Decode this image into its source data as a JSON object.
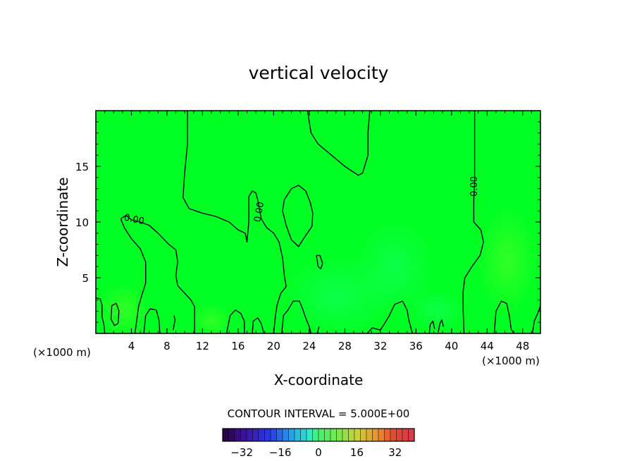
{
  "chart_data": {
    "type": "contour",
    "title": "vertical velocity",
    "xlabel": "X-coordinate",
    "ylabel": "Z-coordinate",
    "x_unit_left": "(×1000 m)",
    "x_unit_right": "(×1000 m)",
    "xlim": [
      0,
      50
    ],
    "ylim": [
      0,
      20
    ],
    "x_ticks": [
      4,
      8,
      12,
      16,
      20,
      24,
      28,
      32,
      36,
      40,
      44,
      48
    ],
    "y_ticks": [
      5,
      10,
      15
    ],
    "contour_label": "0.00",
    "contour_interval_text": "CONTOUR INTERVAL = 5.000E+00",
    "colorbar": {
      "min": -40,
      "max": 40,
      "tick_values": [
        -32,
        -16,
        0,
        16,
        32
      ],
      "tick_labels": [
        "−32",
        "−16",
        "0",
        "16",
        "32"
      ]
    },
    "fill_color": "#00ff22",
    "zero_contours": [
      {
        "name": "central",
        "points": [
          [
            10.3,
            20
          ],
          [
            10.3,
            17
          ],
          [
            10,
            14.5
          ],
          [
            9.8,
            12.2
          ],
          [
            10.5,
            11.2
          ],
          [
            12,
            10.8
          ],
          [
            13.5,
            10.5
          ],
          [
            15,
            10
          ],
          [
            16,
            9.3
          ],
          [
            16.8,
            9
          ],
          [
            17,
            8.2
          ],
          [
            17.2,
            10
          ],
          [
            17.2,
            12.3
          ],
          [
            17.6,
            12.8
          ],
          [
            18,
            12.6
          ],
          [
            18.2,
            12
          ],
          [
            18.6,
            10.3
          ],
          [
            19.2,
            9.5
          ],
          [
            20,
            9
          ],
          [
            20.6,
            8.2
          ],
          [
            21,
            6.8
          ],
          [
            21.2,
            5.2
          ],
          [
            21.4,
            4.2
          ],
          [
            20.8,
            3.6
          ],
          [
            20.4,
            2.6
          ],
          [
            20.2,
            1.6
          ],
          [
            20,
            0
          ]
        ]
      },
      {
        "name": "left",
        "points": [
          [
            2.8,
            10.3
          ],
          [
            3.4,
            10.6
          ],
          [
            4,
            10.2
          ],
          [
            5,
            10
          ],
          [
            6,
            9.7
          ],
          [
            7,
            9
          ],
          [
            8.2,
            8
          ],
          [
            9,
            7.5
          ],
          [
            9.2,
            6.4
          ],
          [
            9,
            5.2
          ],
          [
            9.2,
            4.3
          ],
          [
            10,
            3.6
          ],
          [
            10.7,
            3
          ],
          [
            11.1,
            2.4
          ],
          [
            11.1,
            0
          ]
        ]
      },
      {
        "name": "left-inner",
        "points": [
          [
            2.8,
            10.3
          ],
          [
            3.2,
            9.5
          ],
          [
            4,
            8.5
          ],
          [
            5,
            7.6
          ],
          [
            5.6,
            6.4
          ],
          [
            5.6,
            4.5
          ],
          [
            5.2,
            3.5
          ],
          [
            4.8,
            2.4
          ],
          [
            4.6,
            1.2
          ],
          [
            4.4,
            0
          ]
        ]
      },
      {
        "name": "left-edge",
        "points": [
          [
            0,
            3.2
          ],
          [
            0.5,
            3.1
          ],
          [
            0.7,
            2.5
          ],
          [
            0.7,
            1.5
          ],
          [
            0.9,
            0.8
          ],
          [
            1,
            0
          ]
        ]
      },
      {
        "name": "small-blob-left",
        "points": [
          [
            1.8,
            2.5
          ],
          [
            2.3,
            2.7
          ],
          [
            2.6,
            2
          ],
          [
            2.5,
            0.9
          ],
          [
            2.1,
            0.7
          ],
          [
            1.7,
            1.3
          ],
          [
            1.8,
            2.5
          ]
        ]
      },
      {
        "name": "top-right-tongue",
        "points": [
          [
            23.8,
            20
          ],
          [
            24.2,
            18
          ],
          [
            25,
            17
          ],
          [
            26.5,
            16
          ],
          [
            28,
            15
          ],
          [
            29.5,
            14.2
          ],
          [
            30,
            14.4
          ],
          [
            30.6,
            16
          ],
          [
            30.6,
            18
          ],
          [
            30.8,
            20
          ]
        ]
      },
      {
        "name": "closed-blob",
        "points": [
          [
            21.2,
            12
          ],
          [
            22,
            13
          ],
          [
            22.8,
            13.3
          ],
          [
            23.6,
            12.8
          ],
          [
            24.1,
            11.8
          ],
          [
            24.4,
            10.8
          ],
          [
            24.3,
            9.6
          ],
          [
            23.6,
            8.8
          ],
          [
            22.8,
            7.8
          ],
          [
            22,
            8.4
          ],
          [
            21.4,
            9.7
          ],
          [
            21,
            11
          ],
          [
            21.2,
            12
          ]
        ]
      },
      {
        "name": "small-blob",
        "points": [
          [
            24.8,
            7
          ],
          [
            25.2,
            7
          ],
          [
            25.5,
            6.3
          ],
          [
            25.3,
            5.8
          ],
          [
            25,
            6
          ],
          [
            24.8,
            7
          ]
        ]
      },
      {
        "name": "right",
        "points": [
          [
            42.6,
            20
          ],
          [
            42.6,
            16
          ],
          [
            42.6,
            13.4
          ],
          [
            42.5,
            12
          ],
          [
            42.5,
            10
          ],
          [
            43.3,
            9.3
          ],
          [
            43.6,
            8.2
          ],
          [
            43.2,
            7
          ],
          [
            42.3,
            6
          ],
          [
            41.5,
            5
          ],
          [
            41.3,
            3.8
          ],
          [
            41.3,
            2.2
          ],
          [
            41.4,
            0
          ]
        ]
      },
      {
        "name": "b1",
        "points": [
          [
            5.4,
            0
          ],
          [
            5.6,
            1.6
          ],
          [
            6.1,
            2.2
          ],
          [
            6.8,
            2.1
          ],
          [
            7.1,
            1.2
          ],
          [
            7.2,
            0
          ]
        ]
      },
      {
        "name": "b2",
        "points": [
          [
            8.7,
            0.3
          ],
          [
            8.9,
            1.2
          ],
          [
            8.8,
            1.6
          ]
        ]
      },
      {
        "name": "b3",
        "points": [
          [
            14.7,
            0
          ],
          [
            15.1,
            1.6
          ],
          [
            15.7,
            2.1
          ],
          [
            16.3,
            1.8
          ],
          [
            16.7,
            1.1
          ],
          [
            16.7,
            0
          ]
        ]
      },
      {
        "name": "b4",
        "points": [
          [
            17.6,
            0
          ],
          [
            17.7,
            1.1
          ],
          [
            18.2,
            1.4
          ],
          [
            18.6,
            0.9
          ],
          [
            18.9,
            0
          ]
        ]
      },
      {
        "name": "b5",
        "points": [
          [
            20.9,
            0
          ],
          [
            21.1,
            1.6
          ],
          [
            21.6,
            2.1
          ],
          [
            22.2,
            2.9
          ],
          [
            22.9,
            2.9
          ],
          [
            23.3,
            2.1
          ],
          [
            23.6,
            1.4
          ],
          [
            24,
            0.6
          ],
          [
            24.2,
            0
          ]
        ]
      },
      {
        "name": "b6",
        "points": [
          [
            24.9,
            0
          ],
          [
            25.1,
            0.6
          ]
        ]
      },
      {
        "name": "b7",
        "points": [
          [
            30.5,
            0
          ],
          [
            31.1,
            0.5
          ],
          [
            32,
            0.3
          ],
          [
            32.4,
            0.8
          ],
          [
            33,
            1.6
          ],
          [
            33.6,
            2.6
          ],
          [
            34.5,
            2.9
          ],
          [
            35,
            2.1
          ],
          [
            35.2,
            1.2
          ],
          [
            35.6,
            0
          ]
        ]
      },
      {
        "name": "b8",
        "points": [
          [
            37.5,
            0
          ],
          [
            37.6,
            0.8
          ],
          [
            37.9,
            1.1
          ],
          [
            38.1,
            0.4
          ]
        ]
      },
      {
        "name": "b9",
        "points": [
          [
            38.5,
            0.1
          ],
          [
            38.7,
            0.9
          ],
          [
            38.9,
            1.2
          ],
          [
            39.1,
            0.6
          ]
        ]
      },
      {
        "name": "b10",
        "points": [
          [
            44.8,
            0
          ],
          [
            45,
            2
          ],
          [
            45.6,
            2.9
          ],
          [
            46.2,
            2.7
          ],
          [
            46.5,
            1.6
          ],
          [
            46.7,
            0.4
          ],
          [
            47,
            0
          ]
        ]
      },
      {
        "name": "right-edge",
        "points": [
          [
            49.1,
            0
          ],
          [
            49.3,
            1.1
          ],
          [
            49.7,
            1.8
          ],
          [
            50,
            2.5
          ]
        ]
      }
    ],
    "contour_labels": [
      {
        "x": 4.3,
        "y": 10.2,
        "rotate": 12
      },
      {
        "x": 18.4,
        "y": 10.9,
        "rotate": -80
      },
      {
        "x": 42.6,
        "y": 13.2,
        "rotate": -90
      }
    ]
  }
}
